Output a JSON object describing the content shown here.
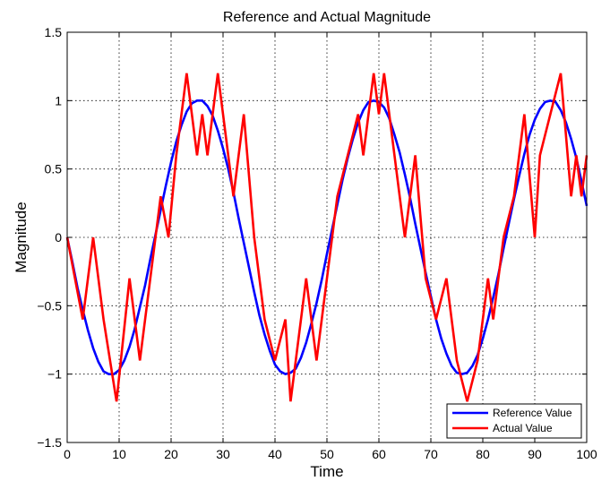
{
  "chart_data": {
    "type": "line",
    "title": "Reference and Actual Magnitude",
    "xlabel": "Time",
    "ylabel": "Magnitude",
    "xlim": [
      0,
      100
    ],
    "ylim": [
      -1.5,
      1.5
    ],
    "xticks": [
      0,
      10,
      20,
      30,
      40,
      50,
      60,
      70,
      80,
      90,
      100
    ],
    "yticks": [
      -1.5,
      -1,
      -0.5,
      0,
      0.5,
      1,
      1.5
    ],
    "xtick_labels": [
      "0",
      "10",
      "20",
      "30",
      "40",
      "50",
      "60",
      "70",
      "80",
      "90",
      "100"
    ],
    "ytick_labels": [
      "−1.5",
      "−1",
      "−0.5",
      "0",
      "0.5",
      "1",
      "1.5"
    ],
    "grid": true,
    "legend_position": "bottom-right",
    "series": [
      {
        "name": "Reference Value",
        "color": "#0000ff",
        "x": [
          0,
          1,
          2,
          3,
          4,
          5,
          6,
          7,
          8,
          9,
          10,
          11,
          12,
          13,
          14,
          15,
          16,
          17,
          18,
          19,
          20,
          21,
          22,
          23,
          24,
          25,
          26,
          27,
          28,
          29,
          30,
          31,
          32,
          33,
          34,
          35,
          36,
          37,
          38,
          39,
          40,
          41,
          42,
          43,
          44,
          45,
          46,
          47,
          48,
          49,
          50,
          51,
          52,
          53,
          54,
          55,
          56,
          57,
          58,
          59,
          60,
          61,
          62,
          63,
          64,
          65,
          66,
          67,
          68,
          69,
          70,
          71,
          72,
          73,
          74,
          75,
          76,
          77,
          78,
          79,
          80,
          81,
          82,
          83,
          84,
          85,
          86,
          87,
          88,
          89,
          90,
          91,
          92,
          93,
          94,
          95,
          96,
          97,
          98,
          99,
          100
        ],
        "y": [
          0.0,
          -0.18,
          -0.37,
          -0.53,
          -0.68,
          -0.81,
          -0.91,
          -0.98,
          -1.0,
          -1.0,
          -0.97,
          -0.9,
          -0.8,
          -0.67,
          -0.51,
          -0.35,
          -0.16,
          0.02,
          0.2,
          0.38,
          0.55,
          0.7,
          0.82,
          0.92,
          0.98,
          1.0,
          1.0,
          0.96,
          0.89,
          0.78,
          0.65,
          0.5,
          0.33,
          0.14,
          -0.04,
          -0.22,
          -0.4,
          -0.57,
          -0.71,
          -0.83,
          -0.93,
          -0.98,
          -1.0,
          -0.99,
          -0.96,
          -0.88,
          -0.77,
          -0.63,
          -0.48,
          -0.31,
          -0.12,
          0.06,
          0.24,
          0.42,
          0.58,
          0.72,
          0.84,
          0.93,
          0.99,
          1.0,
          0.99,
          0.95,
          0.87,
          0.75,
          0.62,
          0.46,
          0.29,
          0.1,
          -0.08,
          -0.26,
          -0.43,
          -0.6,
          -0.74,
          -0.85,
          -0.94,
          -0.99,
          -1.0,
          -0.99,
          -0.94,
          -0.86,
          -0.74,
          -0.6,
          -0.44,
          -0.27,
          -0.08,
          0.1,
          0.28,
          0.45,
          0.61,
          0.75,
          0.86,
          0.94,
          0.99,
          1.0,
          0.99,
          0.93,
          0.84,
          0.72,
          0.58,
          0.41,
          0.23
        ]
      },
      {
        "name": "Actual Value",
        "color": "#ff0000",
        "x": [
          0,
          3,
          5,
          7,
          9.5,
          12,
          14,
          16,
          18,
          19.5,
          21,
          23,
          25,
          26,
          27,
          29,
          32,
          34,
          36,
          38,
          40,
          42,
          43,
          44,
          46,
          48,
          50,
          52,
          54,
          56,
          57,
          59,
          60,
          61,
          63,
          65,
          67,
          69,
          71,
          73,
          75,
          77,
          79,
          80,
          81,
          82,
          84,
          86,
          88,
          90,
          91,
          93,
          95,
          97,
          98,
          99,
          100
        ],
        "y": [
          0,
          -0.6,
          0,
          -0.6,
          -1.2,
          -0.3,
          -0.9,
          -0.3,
          0.3,
          0.0,
          0.6,
          1.2,
          0.6,
          0.9,
          0.6,
          1.2,
          0.3,
          0.9,
          0.0,
          -0.6,
          -0.9,
          -0.6,
          -1.2,
          -0.9,
          -0.3,
          -0.9,
          -0.3,
          0.3,
          0.6,
          0.9,
          0.6,
          1.2,
          0.9,
          1.2,
          0.6,
          0.0,
          0.6,
          -0.3,
          -0.6,
          -0.3,
          -0.9,
          -1.2,
          -0.9,
          -0.6,
          -0.3,
          -0.6,
          0.0,
          0.3,
          0.9,
          0.0,
          0.6,
          0.9,
          1.2,
          0.3,
          0.6,
          0.3,
          0.6
        ]
      }
    ]
  }
}
